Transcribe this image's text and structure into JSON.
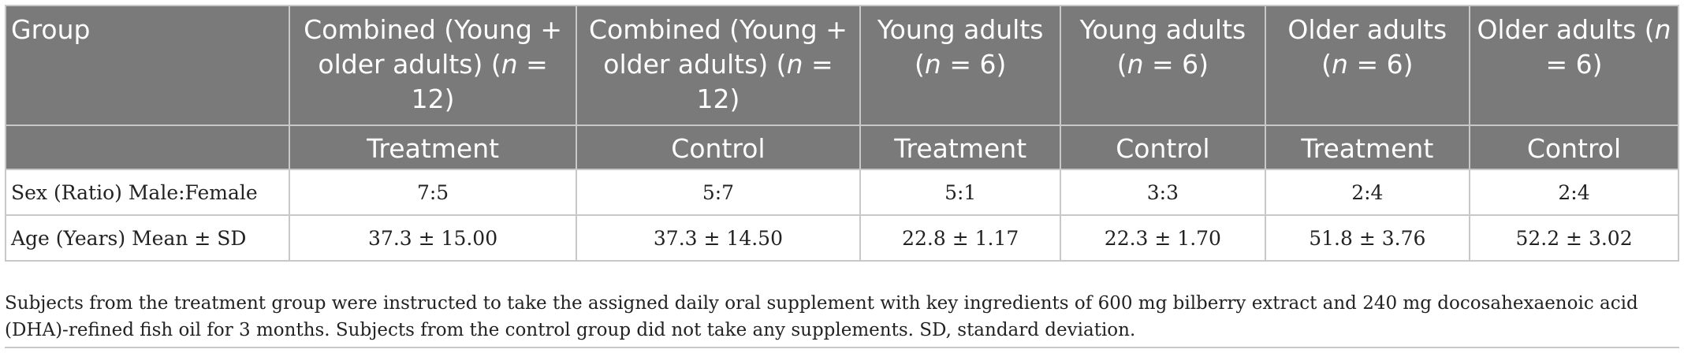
{
  "table": {
    "header_row1": [
      {
        "pre": "Group",
        "n": "",
        "post": ""
      },
      {
        "pre": "Combined (Young + older adults) (",
        "n": "n",
        "post": " = 12)"
      },
      {
        "pre": "Combined (Young + older adults) (",
        "n": "n",
        "post": " = 12)"
      },
      {
        "pre": "Young adults (",
        "n": "n",
        "post": " = 6)"
      },
      {
        "pre": "Young adults (",
        "n": "n",
        "post": " = 6)"
      },
      {
        "pre": "Older adults (",
        "n": "n",
        "post": " = 6)"
      },
      {
        "pre": "Older adults (",
        "n": "n",
        "post": " = 6)"
      }
    ],
    "header_row2": [
      "",
      "Treatment",
      "Control",
      "Treatment",
      "Control",
      "Treatment",
      "Control"
    ],
    "rows": [
      [
        "Sex (Ratio) Male:Female",
        "7:5",
        "5:7",
        "5:1",
        "3:3",
        "2:4",
        "2:4"
      ],
      [
        "Age (Years) Mean ± SD",
        "37.3 ± 15.00",
        "37.3 ± 14.50",
        "22.8 ± 1.17",
        "22.3 ± 1.70",
        "51.8 ± 3.76",
        "52.2 ± 3.02"
      ]
    ]
  },
  "footnote": "Subjects from the treatment group were instructed to take the assigned daily oral supplement with key ingredients of 600 mg bilberry extract and 240 mg docosahexaenoic acid (DHA)-refined fish oil for 3 months. Subjects from the control group did not take any supplements. SD, standard deviation.",
  "colors": {
    "header_bg": "#7a7a7a",
    "border": "#c8c8c8"
  }
}
